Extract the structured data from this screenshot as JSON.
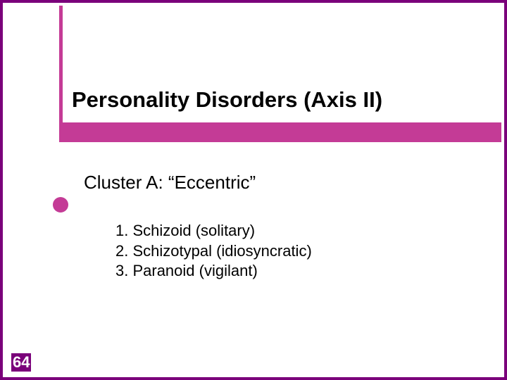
{
  "colors": {
    "frame": "#7a007a",
    "accent": "#c43b96",
    "background": "#ffffff",
    "text": "#000000",
    "page_number_text": "#ffffff"
  },
  "typography": {
    "title_fontsize": 31,
    "title_weight": "bold",
    "subtitle_fontsize": 26,
    "list_fontsize": 22,
    "pagenum_fontsize": 22,
    "pagenum_weight": "bold",
    "font_family": "Arial"
  },
  "slide": {
    "title": "Personality Disorders (Axis II)",
    "subtitle": "Cluster A: “Eccentric”",
    "items": [
      "1. Schizoid (solitary)",
      "2. Schizotypal (idiosyncratic)",
      "3. Paranoid (vigilant)"
    ],
    "page_number": "64"
  }
}
